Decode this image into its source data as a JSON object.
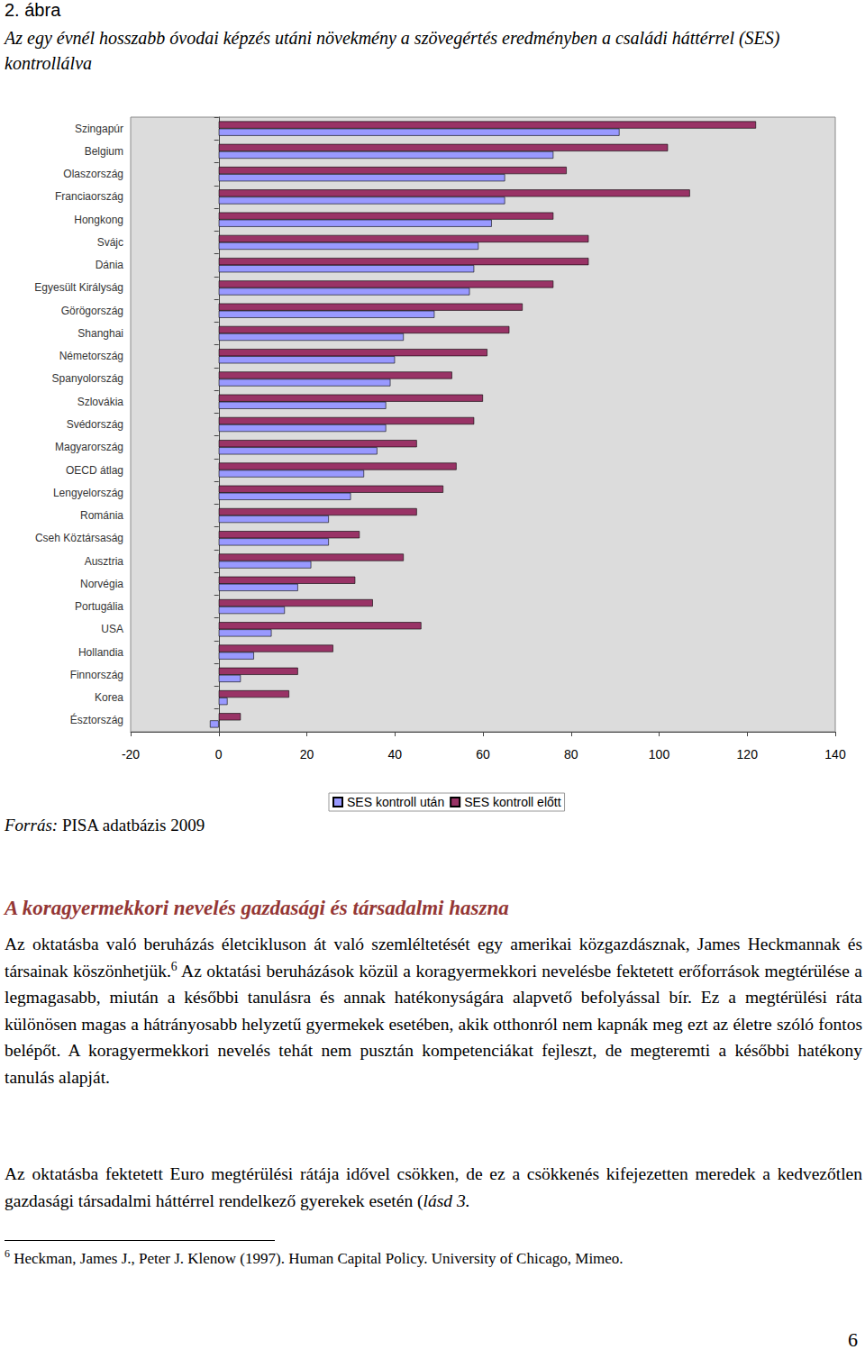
{
  "page": {
    "figure_label": "2. ábra",
    "source_label": "Forrás:",
    "source_text": " PISA adatbázis 2009",
    "heading": "A koragyermekkori nevelés gazdasági és társadalmi haszna",
    "paragraph1_before": "Az oktatásba való beruházás életcikluson át való szemléltetését egy amerikai közgazdásznak, James Heckmannak és társainak köszönhetjük.",
    "paragraph1_mark": "6",
    "paragraph1_after": " Az oktatási beruházások közül a koragyermekkori nevelésbe fektetett erőforrások megtérülése a legmagasabb, miután a későbbi tanulásra és annak hatékonyságára alapvető befolyással bír. Ez a megtérülési ráta különösen magas a hátrányosabb helyzetű gyermekek esetében, akik otthonról nem kapnák meg ezt az életre szóló fontos belépőt. A koragyermekkori nevelés tehát nem pusztán kompetenciákat fejleszt, de megteremti a későbbi hatékony tanulás alapját.",
    "paragraph2": "Az oktatásba fektetett Euro megtérülési rátája idővel csökken, de ez a csökkenés kifejezetten meredek a kedvezőtlen gazdasági társadalmi háttérrel rendelkező gyerekek esetén (",
    "paragraph2_italic": "lásd 3.",
    "footnote_mark": "6",
    "footnote_text": " Heckman, James J., Peter J. Klenow (1997). Human Capital Policy. University of Chicago, Mimeo.",
    "page_number": "6"
  },
  "chart_data": {
    "type": "bar",
    "orientation": "horizontal",
    "title": "Az egy évnél hosszabb óvodai képzés utáni növekmény a szövegértés eredményben a családi háttérrel (SES) kontrollálva",
    "categories": [
      "Szingapúr",
      "Belgium",
      "Olaszország",
      "Franciaország",
      "Hongkong",
      "Svájc",
      "Dánia",
      "Egyesült Királyság",
      "Görögország",
      "Shanghai",
      "Németország",
      "Spanyolország",
      "Szlovákia",
      "Svédország",
      "Magyarország",
      "OECD átlag",
      "Lengyelország",
      "Románia",
      "Cseh Köztársaság",
      "Ausztria",
      "Norvégia",
      "Portugália",
      "USA",
      "Hollandia",
      "Finnország",
      "Korea",
      "Észtország"
    ],
    "series": [
      {
        "name": "SES kontroll után",
        "color": "#9999ff",
        "values": [
          91,
          76,
          65,
          65,
          62,
          59,
          58,
          57,
          49,
          42,
          40,
          39,
          38,
          38,
          36,
          33,
          30,
          25,
          25,
          21,
          18,
          15,
          12,
          8,
          5,
          2,
          -2
        ]
      },
      {
        "name": "SES kontroll előtt",
        "color": "#993366",
        "values": [
          122,
          102,
          79,
          107,
          76,
          84,
          84,
          76,
          69,
          66,
          61,
          53,
          60,
          58,
          45,
          54,
          51,
          45,
          32,
          42,
          31,
          35,
          46,
          26,
          18,
          16,
          5
        ]
      }
    ],
    "xlim": [
      -20,
      140
    ],
    "xticks": [
      -20,
      0,
      20,
      40,
      60,
      80,
      100,
      120,
      140
    ],
    "grid": false,
    "legend": "bottom"
  }
}
